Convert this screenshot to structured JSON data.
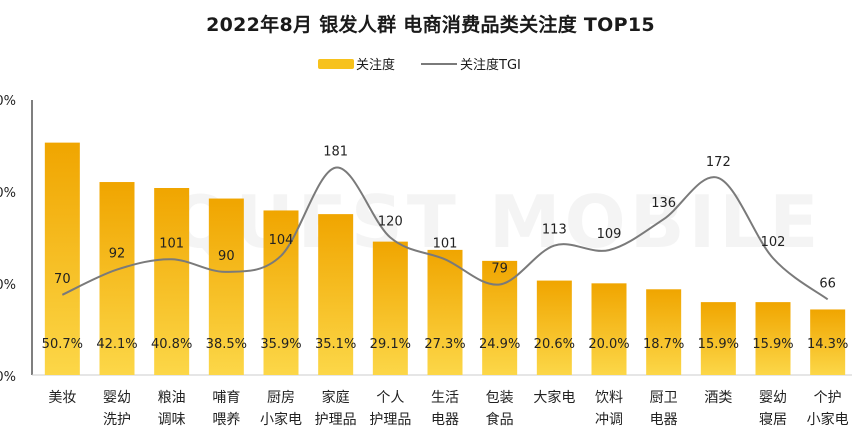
{
  "title": "2022年8月 银发人群 电商消费品类关注度 TOP15",
  "legend": {
    "bar_label": "关注度",
    "line_label": "关注度TGI"
  },
  "watermark": "QUEST MOBILE",
  "colors": {
    "bar": "#f7c21c",
    "bar_dark": "#f0a500",
    "line": "#7a7a7a",
    "axis": "#555555"
  },
  "chart_data": {
    "type": "bar",
    "categories": [
      [
        "美妆"
      ],
      [
        "婴幼",
        "洗护"
      ],
      [
        "粮油",
        "调味"
      ],
      [
        "哺育",
        "喂养"
      ],
      [
        "厨房",
        "小家电"
      ],
      [
        "家庭",
        "护理品"
      ],
      [
        "个人",
        "护理品"
      ],
      [
        "生活",
        "电器"
      ],
      [
        "包装",
        "食品"
      ],
      [
        "大家电"
      ],
      [
        "饮料",
        "冲调"
      ],
      [
        "厨卫",
        "电器"
      ],
      [
        "酒类"
      ],
      [
        "婴幼",
        "寝居"
      ],
      [
        "个护",
        "小家电"
      ]
    ],
    "series": [
      {
        "name": "关注度",
        "type": "bar",
        "values": [
          50.7,
          42.1,
          40.8,
          38.5,
          35.9,
          35.1,
          29.1,
          27.3,
          24.9,
          20.6,
          20.0,
          18.7,
          15.9,
          15.9,
          14.3
        ],
        "labels": [
          "50.7%",
          "42.1%",
          "40.8%",
          "38.5%",
          "35.9%",
          "35.1%",
          "29.1%",
          "27.3%",
          "24.9%",
          "20.6%",
          "20.0%",
          "18.7%",
          "15.9%",
          "15.9%",
          "14.3%"
        ]
      },
      {
        "name": "关注度TGI",
        "type": "line",
        "values": [
          70,
          92,
          101,
          90,
          104,
          181,
          120,
          101,
          79,
          113,
          109,
          136,
          172,
          102,
          66
        ]
      }
    ],
    "y_ticks": [
      "0%",
      "0%",
      "0%",
      "0%"
    ],
    "ylim": [
      0,
      60
    ],
    "tgi_range": [
      0,
      240
    ]
  }
}
